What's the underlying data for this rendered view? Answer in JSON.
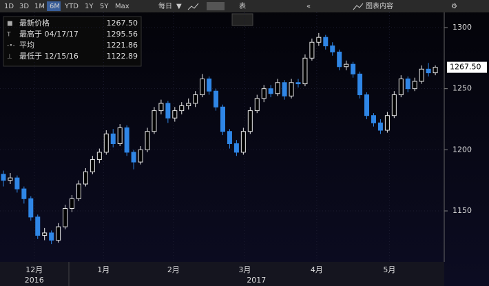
{
  "toolbar": {
    "ranges": [
      "1D",
      "3D",
      "1M",
      "6M",
      "YTD",
      "1Y",
      "5Y",
      "Max"
    ],
    "active_range": "6M",
    "frequency": "每日",
    "table": "表",
    "chart_content": "图表内容"
  },
  "chart_data": {
    "type": "candlestick",
    "stats": [
      {
        "name": "最新价格",
        "value": 1267.5,
        "value_label": "1267.50"
      },
      {
        "name": "最高于 04/17/17",
        "value": 1295.56
      },
      {
        "name": "平均",
        "value": 1221.86
      },
      {
        "name": "最低于 12/15/16",
        "value": 1122.89
      }
    ],
    "x": [
      0,
      1,
      2,
      3,
      4,
      5,
      6,
      7,
      8,
      9,
      10,
      11,
      12,
      13,
      14,
      15,
      16,
      17,
      18,
      19,
      20,
      21,
      22,
      23,
      24,
      25,
      26,
      27,
      28,
      29,
      30,
      31,
      32,
      33,
      34,
      35,
      36,
      37,
      38,
      39,
      40,
      41,
      42,
      43,
      44,
      45,
      46,
      47,
      48,
      49,
      50,
      51,
      52,
      53,
      54,
      55,
      56,
      57,
      58,
      59,
      60,
      61,
      62,
      63
    ],
    "open": [
      1180,
      1175,
      1177,
      1168,
      1160,
      1145,
      1130,
      1132,
      1126,
      1137,
      1152,
      1160,
      1172,
      1182,
      1192,
      1198,
      1213,
      1205,
      1218,
      1198,
      1190,
      1200,
      1215,
      1232,
      1238,
      1226,
      1232,
      1236,
      1238,
      1245,
      1258,
      1248,
      1235,
      1215,
      1205,
      1198,
      1215,
      1232,
      1242,
      1250,
      1246,
      1255,
      1244,
      1255,
      1254,
      1275,
      1288,
      1292,
      1285,
      1280,
      1268,
      1270,
      1262,
      1245,
      1228,
      1222,
      1216,
      1228,
      1245,
      1258,
      1250,
      1256,
      1266,
      1263
    ],
    "high": [
      1183,
      1181,
      1179,
      1170,
      1162,
      1147,
      1136,
      1134,
      1140,
      1155,
      1163,
      1175,
      1185,
      1195,
      1201,
      1216,
      1217,
      1221,
      1220,
      1200,
      1203,
      1218,
      1235,
      1241,
      1240,
      1235,
      1239,
      1242,
      1248,
      1262,
      1260,
      1250,
      1237,
      1217,
      1208,
      1218,
      1235,
      1245,
      1253,
      1253,
      1258,
      1257,
      1258,
      1258,
      1278,
      1291,
      1295.56,
      1294,
      1288,
      1282,
      1273,
      1272,
      1264,
      1247,
      1230,
      1225,
      1231,
      1248,
      1261,
      1260,
      1259,
      1269,
      1271,
      1269
    ],
    "low": [
      1170,
      1172,
      1165,
      1156,
      1142,
      1127,
      1126,
      1122.89,
      1124,
      1135,
      1149,
      1158,
      1170,
      1180,
      1189,
      1196,
      1202,
      1203,
      1195,
      1184,
      1188,
      1198,
      1213,
      1229,
      1222,
      1223,
      1229,
      1233,
      1235,
      1243,
      1245,
      1232,
      1212,
      1201,
      1195,
      1196,
      1213,
      1230,
      1239,
      1243,
      1244,
      1241,
      1242,
      1251,
      1252,
      1273,
      1285,
      1282,
      1277,
      1265,
      1265,
      1259,
      1242,
      1225,
      1219,
      1213,
      1214,
      1226,
      1243,
      1247,
      1248,
      1254,
      1260,
      1261
    ],
    "close": [
      1175,
      1177,
      1168,
      1160,
      1145,
      1130,
      1132,
      1126,
      1137,
      1152,
      1160,
      1172,
      1182,
      1192,
      1198,
      1213,
      1205,
      1218,
      1198,
      1190,
      1200,
      1215,
      1232,
      1238,
      1226,
      1232,
      1236,
      1238,
      1245,
      1258,
      1248,
      1235,
      1215,
      1205,
      1198,
      1215,
      1232,
      1242,
      1250,
      1246,
      1255,
      1244,
      1255,
      1254,
      1275,
      1288,
      1292,
      1285,
      1280,
      1268,
      1270,
      1262,
      1245,
      1228,
      1222,
      1216,
      1228,
      1245,
      1258,
      1250,
      1256,
      1266,
      1263,
      1267.5
    ],
    "up_color": "#e8e8e8",
    "down_color": "#2f86e6",
    "xlim": [
      -0.5,
      64.3
    ],
    "xticks": [
      {
        "value": 4.5,
        "label": "12月"
      },
      {
        "value": 14.6,
        "label": "1月"
      },
      {
        "value": 24.8,
        "label": "2月"
      },
      {
        "value": 35.2,
        "label": "3月"
      },
      {
        "value": 45.7,
        "label": "4月"
      },
      {
        "value": 56.3,
        "label": "5月"
      }
    ],
    "years": [
      {
        "value": 4.5,
        "label": "2016"
      },
      {
        "value": 36.9,
        "label": "2017"
      }
    ],
    "ylim": [
      1108.3,
      1312.4
    ],
    "yticks": [
      1150,
      1200,
      1250,
      1300
    ],
    "grid": true
  }
}
